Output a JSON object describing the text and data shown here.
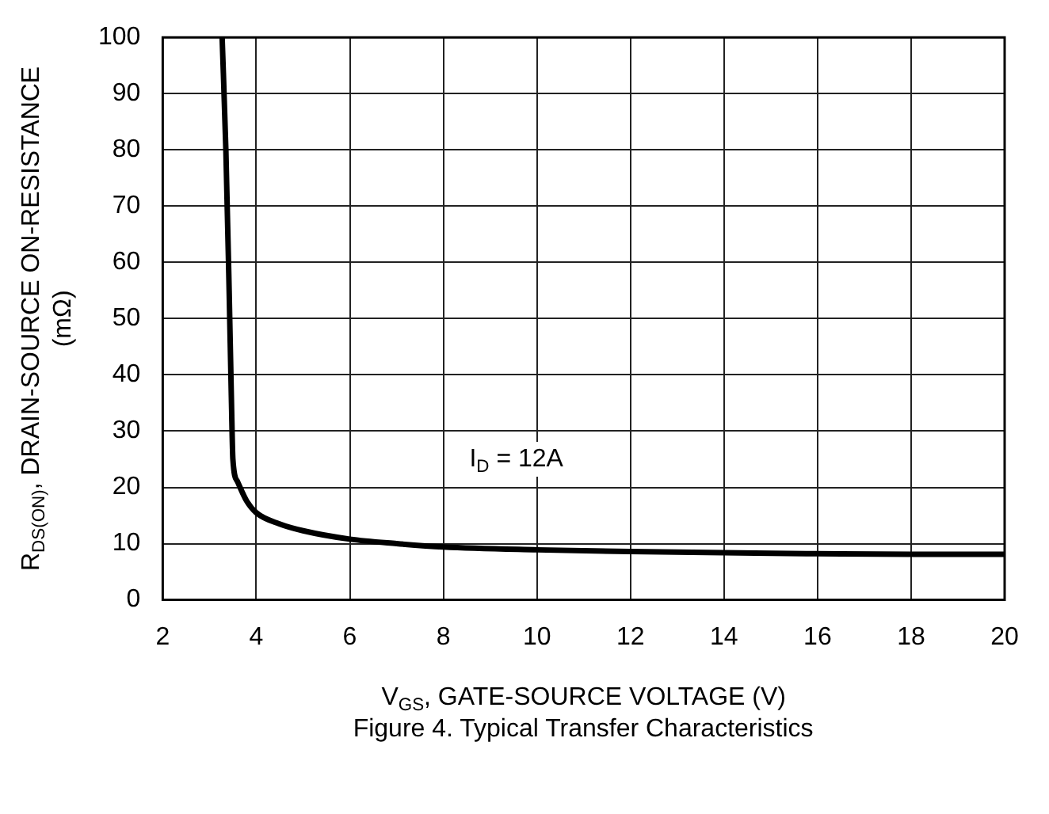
{
  "chart_data": {
    "type": "line",
    "xlabel": "V$_{GS}$, GATE-SOURCE VOLTAGE (V)",
    "ylabel": "R$_{DS(ON)}$, DRAIN-SOURCE ON-RESISTANCE\n(mΩ)",
    "series": [
      {
        "color": "#000000",
        "x": [
          3.27,
          3.35,
          3.42,
          3.47,
          3.5,
          3.6,
          3.8,
          4.0,
          4.5,
          5.0,
          6.0,
          7.0,
          8.0,
          10.0,
          12.0,
          14.0,
          16.0,
          18.0,
          20.0
        ],
        "values": [
          100,
          80,
          55,
          35,
          25,
          21,
          17.5,
          15.5,
          13.5,
          12.3,
          10.8,
          10,
          9.4,
          8.9,
          8.6,
          8.4,
          8.2,
          8.1,
          8.1
        ]
      }
    ],
    "xlim": [
      2,
      20
    ],
    "xticks": [
      2,
      4,
      6,
      8,
      10,
      12,
      14,
      16,
      18,
      20
    ],
    "ylim": [
      0,
      100
    ],
    "yticks": [
      0,
      10,
      20,
      30,
      40,
      50,
      60,
      70,
      80,
      90,
      100
    ],
    "grid": true,
    "legend": false,
    "marker": "none",
    "line_style": "solid",
    "annotations": [
      "I$_{D}$ = 12A",
      "Figure 4. Typical Transfer Characteristics"
    ]
  }
}
